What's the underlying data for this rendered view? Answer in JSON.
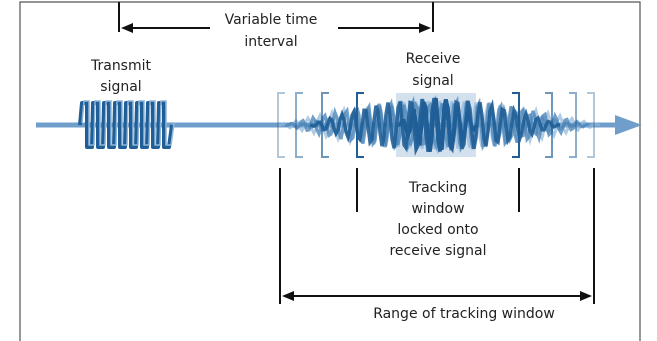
{
  "labels": {
    "interval_line1": "Variable time",
    "interval_line2": "interval",
    "transmit_line1": "Transmit",
    "transmit_line2": "signal",
    "receive_line1": "Receive",
    "receive_line2": "signal",
    "tracking_line1": "Tracking",
    "tracking_line2": "window",
    "tracking_line3": "locked onto",
    "tracking_line4": "receive signal",
    "range": "Range of tracking window"
  },
  "colors": {
    "signal_dark": "#1f5e96",
    "signal_mid": "#4d86b8",
    "signal_light": "#8fb5d8",
    "axis": "#6f9ecb",
    "highlight": "#d3e1ef",
    "line": "#111111",
    "frame": "#555555"
  }
}
